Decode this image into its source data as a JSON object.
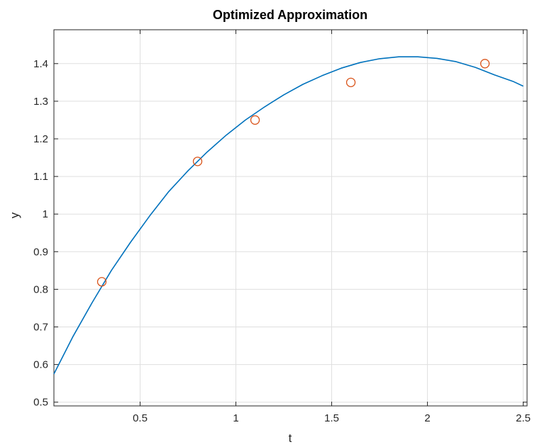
{
  "chart_data": {
    "type": "scatter",
    "title": "Optimized Approximation",
    "xlabel": "t",
    "ylabel": "y",
    "xlim": [
      0.05,
      2.52
    ],
    "ylim": [
      0.49,
      1.49
    ],
    "xticks": [
      0.5,
      1,
      1.5,
      2,
      2.5
    ],
    "xtick_labels": [
      "0.5",
      "1",
      "1.5",
      "2",
      "2.5"
    ],
    "yticks": [
      0.5,
      0.6,
      0.7,
      0.8,
      0.9,
      1.0,
      1.1,
      1.2,
      1.3,
      1.4
    ],
    "ytick_labels": [
      "0.5",
      "0.6",
      "0.7",
      "0.8",
      "0.9",
      "1",
      "1.1",
      "1.2",
      "1.3",
      "1.4"
    ],
    "grid": true,
    "box": true,
    "series": [
      {
        "kind": "line",
        "color": "#0072BD",
        "x": [
          0.05,
          0.15,
          0.25,
          0.35,
          0.45,
          0.55,
          0.65,
          0.75,
          0.85,
          0.95,
          1.05,
          1.15,
          1.25,
          1.35,
          1.45,
          1.55,
          1.65,
          1.75,
          1.85,
          1.95,
          2.05,
          2.15,
          2.25,
          2.35,
          2.45,
          2.5
        ],
        "y": [
          0.575,
          0.675,
          0.765,
          0.85,
          0.925,
          0.995,
          1.06,
          1.115,
          1.165,
          1.21,
          1.25,
          1.285,
          1.317,
          1.345,
          1.368,
          1.388,
          1.403,
          1.413,
          1.418,
          1.418,
          1.414,
          1.405,
          1.39,
          1.37,
          1.352,
          1.34
        ]
      },
      {
        "kind": "markers",
        "marker": "circle",
        "color": "#D95319",
        "x": [
          0.3,
          0.8,
          1.1,
          1.6,
          2.3
        ],
        "y": [
          0.82,
          1.14,
          1.25,
          1.35,
          1.4
        ]
      }
    ]
  }
}
